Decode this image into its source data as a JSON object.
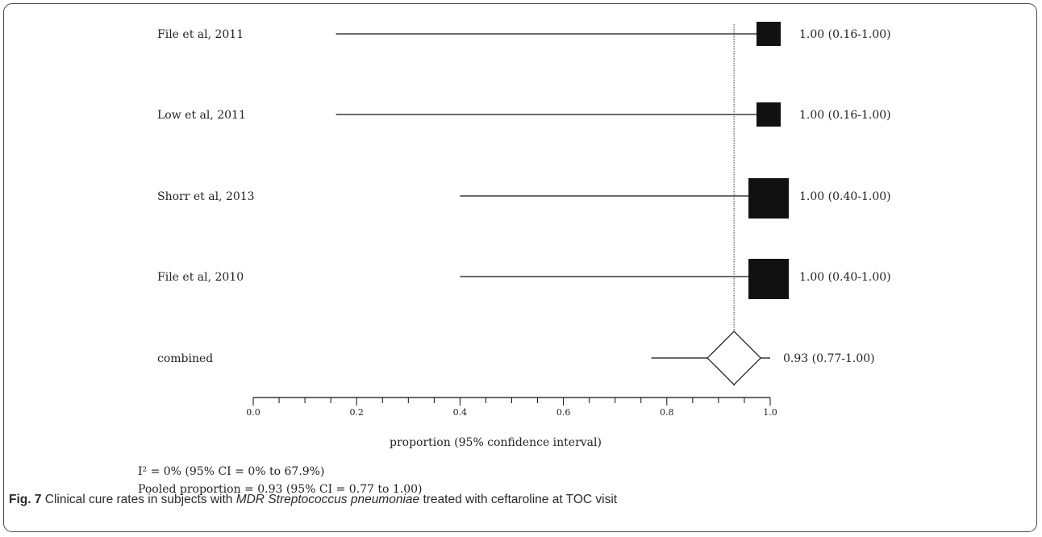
{
  "chart_data": {
    "type": "forest",
    "studies": [
      {
        "label": "File et al, 2011",
        "estimate": 1.0,
        "ci_low": 0.16,
        "ci_high": 1.0,
        "annotation": "1.00 (0.16-1.00)",
        "weight": "small"
      },
      {
        "label": "Low et al, 2011",
        "estimate": 1.0,
        "ci_low": 0.16,
        "ci_high": 1.0,
        "annotation": "1.00 (0.16-1.00)",
        "weight": "small"
      },
      {
        "label": "Shorr et al, 2013",
        "estimate": 1.0,
        "ci_low": 0.4,
        "ci_high": 1.0,
        "annotation": "1.00 (0.40-1.00)",
        "weight": "large"
      },
      {
        "label": "File et al, 2010",
        "estimate": 1.0,
        "ci_low": 0.4,
        "ci_high": 1.0,
        "annotation": "1.00 (0.40-1.00)",
        "weight": "large"
      }
    ],
    "combined": {
      "label": "combined",
      "estimate": 0.93,
      "ci_low": 0.77,
      "ci_high": 1.0,
      "annotation": "0.93 (0.77-1.00)"
    },
    "reference_line": 0.93,
    "xlim": [
      0.0,
      1.0
    ],
    "x_ticks": [
      "0.0",
      "0.2",
      "0.4",
      "0.6",
      "0.8",
      "1.0"
    ],
    "xlabel": "proportion (95% confidence interval)"
  },
  "stats": {
    "heterogeneity": "I² = 0% (95% CI = 0% to 67.9%)",
    "pooled": "Pooled proportion = 0.93 (95% CI = 0.77 to 1.00)"
  },
  "caption": {
    "label": "Fig. 7",
    "text_before": " Clinical cure rates in subjects with ",
    "italic": "MDR Streptococcus pneumoniae",
    "text_after": " treated with ceftaroline at TOC visit"
  }
}
